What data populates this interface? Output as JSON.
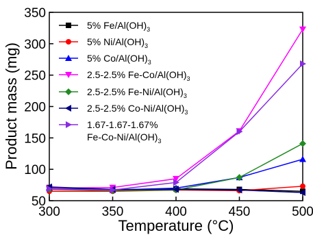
{
  "chart_data": {
    "type": "line",
    "xlabel": "Temperature (°C)",
    "ylabel": "Product mass (mg)",
    "xlim": [
      300,
      500
    ],
    "ylim": [
      50,
      350
    ],
    "x_ticks": [
      300,
      350,
      400,
      450,
      500
    ],
    "y_ticks": [
      50,
      100,
      150,
      200,
      250,
      300,
      350
    ],
    "x": [
      300,
      350,
      400,
      450,
      500
    ],
    "legend_position": "top-left",
    "series": [
      {
        "name": "5% Fe/Al(OH)3",
        "label_main": "5% Fe/Al(OH)",
        "label_sub": "3",
        "color": "#000000",
        "marker": "square",
        "values": [
          71,
          67,
          69,
          68,
          65
        ]
      },
      {
        "name": "5% Ni/Al(OH)3",
        "label_main": "5% Ni/Al(OH)",
        "label_sub": "3",
        "color": "#ff0000",
        "marker": "circle",
        "values": [
          65,
          65,
          67,
          66,
          73
        ]
      },
      {
        "name": "5% Co/Al(OH)3",
        "label_main": "5% Co/Al(OH)",
        "label_sub": "3",
        "color": "#0000ff",
        "marker": "triangle-up",
        "values": [
          70,
          67,
          70,
          87,
          116
        ]
      },
      {
        "name": "2.5-2.5% Fe-Co/Al(OH)3",
        "label_main": "2.5-2.5% Fe-Co/Al(OH)",
        "label_sub": "3",
        "color": "#ff00ff",
        "marker": "triangle-down",
        "values": [
          70,
          71,
          85,
          161,
          323
        ]
      },
      {
        "name": "2.5-2.5% Fe-Ni/Al(OH)3",
        "label_main": "2.5-2.5% Fe-Ni/Al(OH)",
        "label_sub": "3",
        "color": "#228b22",
        "marker": "diamond",
        "values": [
          68,
          66,
          67,
          87,
          141
        ]
      },
      {
        "name": "2.5-2.5% Co-Ni/Al(OH)3",
        "label_main": "2.5-2.5% Co-Ni/Al(OH)",
        "label_sub": "3",
        "color": "#000080",
        "marker": "triangle-left",
        "values": [
          72,
          68,
          68,
          67,
          63
        ]
      },
      {
        "name": "1.67-1.67-1.67% Fe-Co-Ni/Al(OH)3",
        "label_main": "1.67-1.67-1.67%",
        "label_line2": "Fe-Co-Ni/Al(OH)",
        "label_sub": "3",
        "color": "#8a2be2",
        "marker": "triangle-right",
        "values": [
          69,
          67,
          79,
          160,
          268
        ]
      }
    ]
  }
}
